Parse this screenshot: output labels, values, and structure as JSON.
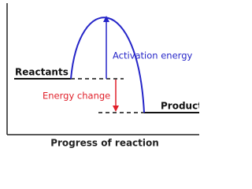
{
  "diagram": {
    "x_axis_label": "Progress of reaction",
    "reactants": "Reactants",
    "products": "Products",
    "activation_energy": "Activation energy",
    "energy_change": "Energy change"
  }
}
